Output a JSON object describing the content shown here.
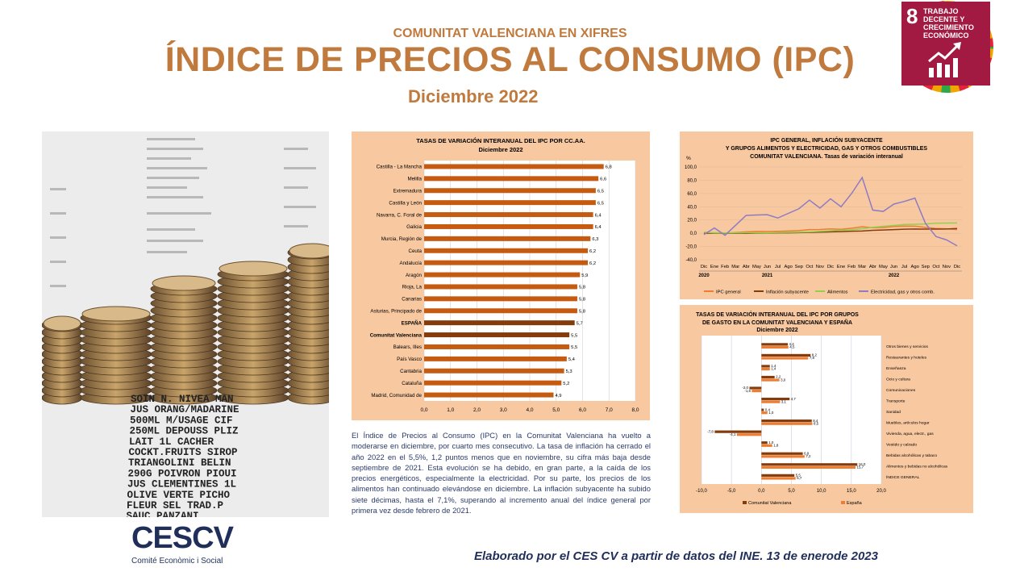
{
  "header": {
    "supertitle": "COMUNITAT VALENCIANA EN XIFRES",
    "title": "ÍNDICE DE PRECIOS AL CONSUMO (IPC)",
    "date": "Diciembre 2022"
  },
  "sdg": {
    "number": "8",
    "label": "TRABAJO DECENTE Y CRECIMIENTO ECONÓMICO",
    "color": "#a21942",
    "icon": "growth-chart-icon"
  },
  "receipt_lines": [
    "SOIN N. NIVEA MAN",
    "JUS ORANG/MADARINE",
    "500ML M/USAGE CIF",
    "250ML DEPOUSS PLIZ",
    "LAIT 1L CACHER",
    "COCKT.FRUITS SIROP",
    "TRIANGOLINI BELIN",
    "290G POIVRON PIOUI",
    "JUS CLEMENTINES 1L",
    "OLIVE VERTE PICHO",
    "FLEUR SEL TRAD.P",
    "SAUC PANZANI"
  ],
  "paragraph": "El Índice de Precios al Consumo (IPC) en la Comunitat Valenciana ha vuelto a moderarse en diciembre, por cuarto mes consecutivo. La tasa de inflación ha cerrado el año 2022 en el 5,5%, 1,2 puntos menos que en noviembre, su cifra más baja desde septiembre de 2021. Esta evolución se ha debido, en gran parte, a la caída de los precios energéticos, especialmente la electricidad. Por su parte, los precios de los alimentos han continuado elevándose en diciembre. La inflación subyacente ha subido siete décimas, hasta el 7,1%, superando al incremento anual del índice general por primera vez desde febrero de 2021.",
  "logo": {
    "text": "CESCV",
    "subtitle": "Comité Econòmic i Social"
  },
  "footer": "Elaborado por el CES CV a partir de datos del INE. 13 de enerode 2023",
  "colors": {
    "accent": "#c07a3e",
    "panel": "#f8c8a0",
    "bar": "#c55a11",
    "bar_highlight": "#843c0c",
    "navy": "#1f2f5a"
  },
  "chart_data": [
    {
      "type": "bar",
      "orientation": "horizontal",
      "title": "TASAS DE VARIACIÓN INTERANUAL DEL IPC POR CC.AA.",
      "subtitle": "Diciembre 2022",
      "categories": [
        "Castilla - La Mancha",
        "Melilla",
        "Extremadura",
        "Castilla y León",
        "Navarra, C. Foral de",
        "Galicia",
        "Murcia, Región de",
        "Ceuta",
        "Andalucía",
        "Aragón",
        "Rioja, La",
        "Canarias",
        "Asturias, Principado de",
        "ESPAÑA",
        "Comunitat Valenciana",
        "Balears, Illes",
        "País Vasco",
        "Cantabria",
        "Cataluña",
        "Madrid, Comunidad de"
      ],
      "values": [
        6.8,
        6.6,
        6.5,
        6.5,
        6.4,
        6.4,
        6.3,
        6.2,
        6.2,
        5.9,
        5.8,
        5.8,
        5.8,
        5.7,
        5.5,
        5.5,
        5.4,
        5.3,
        5.2,
        4.9
      ],
      "value_labels": [
        "6,8",
        "6,6",
        "6,5",
        "6,5",
        "6,4",
        "6,4",
        "6,3",
        "6,2",
        "6,2",
        "5,9",
        "5,8",
        "5,8",
        "5,8",
        "5,7",
        "5,5",
        "5,5",
        "5,4",
        "5,3",
        "5,2",
        "4,9"
      ],
      "highlight": [
        "ESPAÑA",
        "Comunitat Valenciana"
      ],
      "xlim": [
        0,
        8
      ],
      "ticks": [
        "0,0",
        "1,0",
        "2,0",
        "3,0",
        "4,0",
        "5,0",
        "6,0",
        "7,0",
        "8,0"
      ],
      "grid": true
    },
    {
      "type": "line",
      "title": "IPC GENERAL, INFLACIÓN SUBYACENTE",
      "title2": "Y GRUPOS ALIMENTOS Y ELECTRICIDAD, GAS Y OTROS COMBUSTIBLES",
      "title3": "COMUNITAT VALENCIANA. Tasas de variación interanual",
      "ylabel": "%",
      "ylim": [
        -40,
        100
      ],
      "yticks": [
        "100,0",
        "80,0",
        "60,0",
        "40,0",
        "20,0",
        "0,0",
        "-20,0",
        "-40,0"
      ],
      "x": [
        "Dic",
        "Ene",
        "Feb",
        "Mar",
        "Abr",
        "May",
        "Jun",
        "Jul",
        "Ago",
        "Sep",
        "Oct",
        "Nov",
        "Dic",
        "Ene",
        "Feb",
        "Mar",
        "Abr",
        "May",
        "Jun",
        "Jul",
        "Ago",
        "Sep",
        "Oct",
        "Nov",
        "Dic"
      ],
      "year_labels": [
        "2020",
        "2021",
        "2022"
      ],
      "series": [
        {
          "name": "IPC general",
          "color": "#ed7d31",
          "values": [
            -0.5,
            0.4,
            -0.6,
            1.2,
            2.2,
            2.7,
            2.6,
            2.9,
            3.3,
            4.0,
            5.5,
            5.6,
            6.5,
            6.0,
            7.6,
            9.8,
            8.4,
            8.7,
            10.2,
            10.8,
            10.6,
            8.9,
            7.2,
            6.7,
            5.5
          ]
        },
        {
          "name": "Inflación subyacente",
          "color": "#843c0c",
          "values": [
            0.1,
            0.5,
            0.1,
            0.3,
            0.0,
            0.2,
            0.2,
            0.6,
            0.7,
            1.0,
            1.3,
            1.7,
            2.1,
            2.4,
            3.0,
            3.4,
            4.4,
            4.9,
            5.5,
            6.1,
            6.4,
            6.2,
            6.3,
            6.4,
            7.1
          ]
        },
        {
          "name": "Alimentos",
          "color": "#92d050",
          "values": [
            1.5,
            0.8,
            0.5,
            1.0,
            0.9,
            0.6,
            0.5,
            1.2,
            1.4,
            1.6,
            2.0,
            2.9,
            3.8,
            4.5,
            5.4,
            6.8,
            9.0,
            10.5,
            11.8,
            13.2,
            13.5,
            14.0,
            15.3,
            15.4,
            15.5
          ]
        },
        {
          "name": "Electricidad, gas y otros comb.",
          "color": "#8e7cc3",
          "values": [
            -2.0,
            8.0,
            -3.0,
            12.0,
            27.0,
            27.5,
            28.0,
            23.0,
            30.0,
            37.0,
            50.0,
            38.0,
            52.0,
            40.0,
            60.0,
            84.0,
            35.0,
            33.0,
            44.0,
            48.0,
            53.0,
            15.0,
            -5.0,
            -10.0,
            -19.0
          ]
        }
      ]
    },
    {
      "type": "bar",
      "orientation": "horizontal",
      "title": "TASAS DE VARIACIÓN INTERANUAL DEL IPC POR GRUPOS",
      "title2": "DE GASTO EN LA COMUNITAT VALENCIANA Y ESPAÑA",
      "subtitle": "Diciembre 2022",
      "categories": [
        "Otros bienes y servicios",
        "Restaurantes y hoteles",
        "Enseñanza",
        "Ocio y cultura",
        "Comunicaciones",
        "Transporte",
        "Sanidad",
        "Muebles, artículos hogar",
        "Vivienda, agua, electr., gas",
        "Vestido y calzado",
        "Bebidas alcohólicas y tabaco",
        "Alimentos y bebidas no alcohólicas",
        "ÍNDICE GENERAL"
      ],
      "series": [
        {
          "name": "Comunitat Valenciana",
          "color": "#843c0c",
          "values": [
            4.4,
            8.2,
            1.4,
            2.2,
            -2.0,
            4.7,
            0.4,
            8.4,
            -7.8,
            1.0,
            6.9,
            16.0,
            5.5
          ],
          "labels": [
            "4,4",
            "8,2",
            "1,4",
            "2,2",
            "-2,0",
            "4,7",
            "0,4",
            "8,4",
            "-7,8",
            "1,0",
            "6,9",
            "16,0",
            "5,5"
          ]
        },
        {
          "name": "España",
          "color": "#ed7d31",
          "values": [
            4.5,
            7.8,
            1.4,
            3.0,
            -1.6,
            3.1,
            1.0,
            8.5,
            -4.1,
            1.8,
            7.2,
            15.7,
            5.7
          ],
          "labels": [
            "4,5",
            "7,8",
            "1,4",
            "3,0",
            "-1,6",
            "3,1",
            "1,0",
            "8,5",
            "-4,1",
            "1,8",
            "7,2",
            "15,7",
            "5,7"
          ]
        }
      ],
      "xlim": [
        -10,
        20
      ],
      "ticks": [
        "-10,0",
        "-5,0",
        "0,0",
        "5,0",
        "10,0",
        "15,0",
        "20,0"
      ],
      "grid": true
    }
  ]
}
